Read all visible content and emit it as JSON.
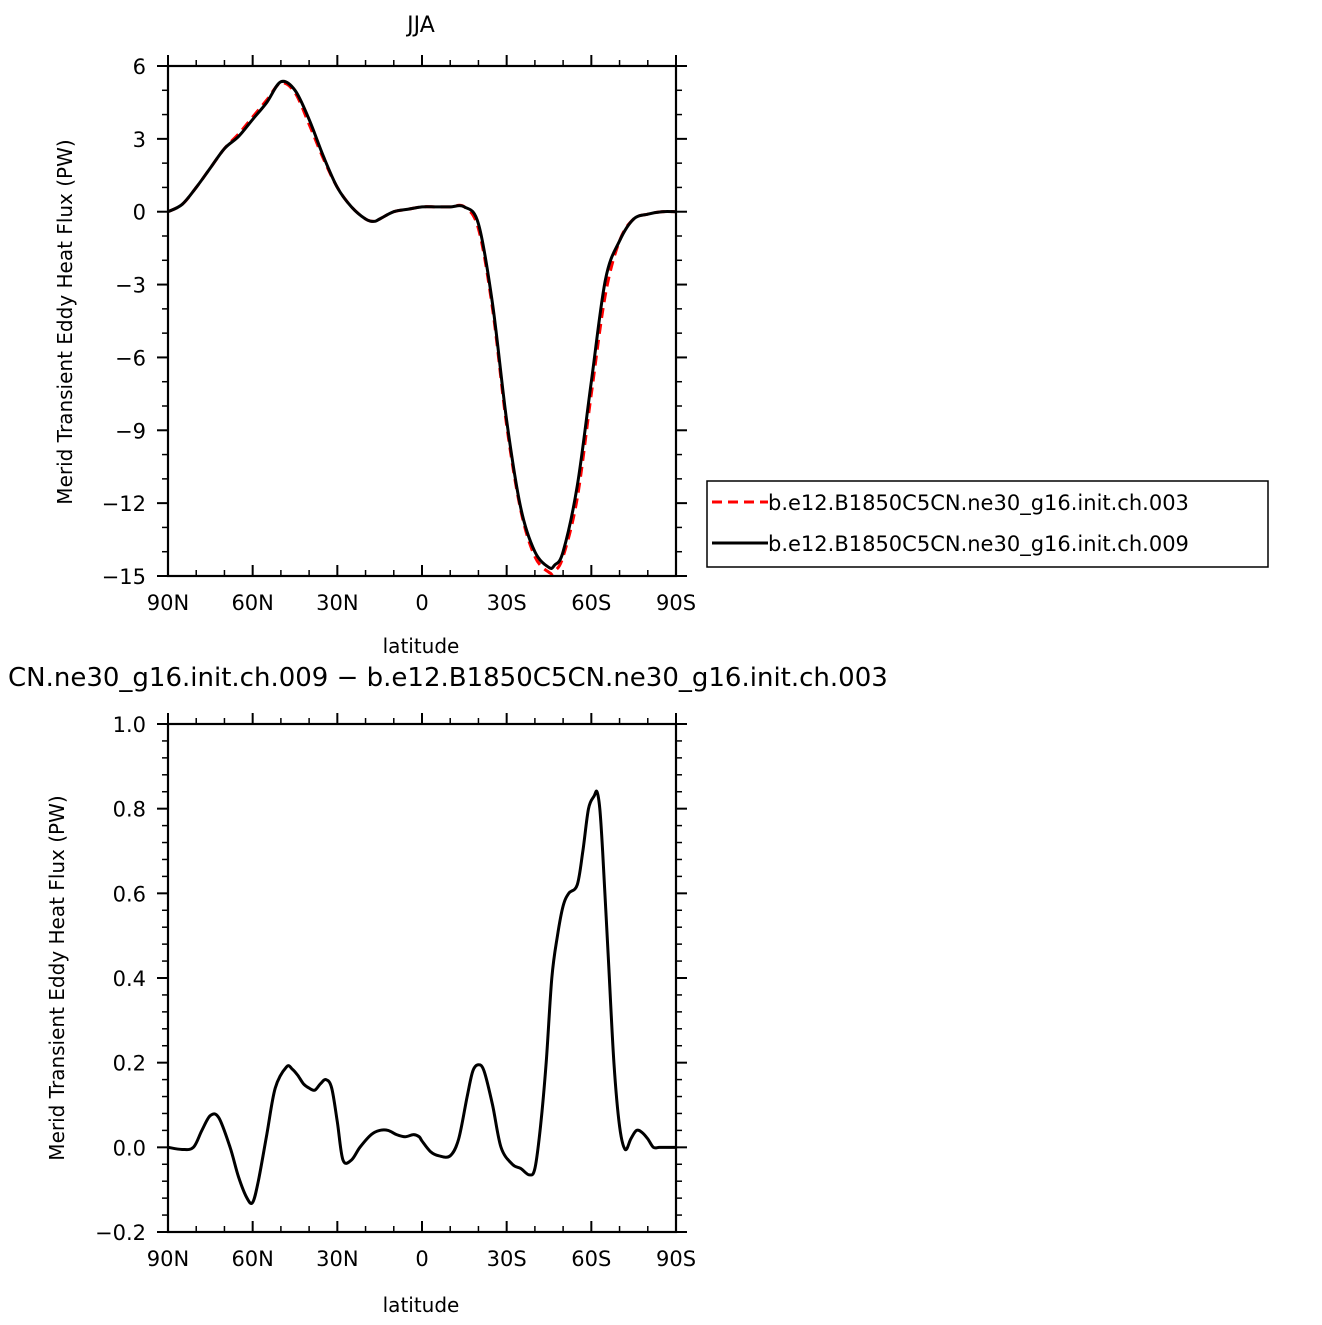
{
  "chart_data": [
    {
      "type": "line",
      "title": "JJA",
      "xlabel": "latitude",
      "ylabel": "Merid Transient Eddy Heat Flux (PW)",
      "xlim": [
        90,
        -90
      ],
      "ylim": [
        -15,
        6
      ],
      "x_tick_values": [
        90,
        60,
        30,
        0,
        -30,
        -60,
        -90
      ],
      "x_tick_labels": [
        "90N",
        "60N",
        "30N",
        "0",
        "30S",
        "60S",
        "90S"
      ],
      "y_tick_values": [
        6,
        3,
        0,
        -3,
        -6,
        -9,
        -12,
        -15
      ],
      "y_tick_labels": [
        "6",
        "3",
        "0",
        "−3",
        "−6",
        "−9",
        "−12",
        "−15"
      ],
      "legend_placement": "right",
      "series": [
        {
          "name": "b.e12.B1850C5CN.ne30_g16.init.ch.003",
          "color": "#ff0000",
          "dash": "dashed",
          "x": [
            90,
            85,
            80,
            75,
            70,
            65,
            60,
            55,
            50,
            45,
            40,
            35,
            30,
            25,
            20,
            17,
            15,
            10,
            5,
            0,
            -5,
            -10,
            -15,
            -20,
            -25,
            -30,
            -35,
            -40,
            -45,
            -47,
            -50,
            -55,
            -60,
            -65,
            -70,
            -75,
            -80,
            -85,
            -90
          ],
          "y": [
            0,
            0.3,
            1.0,
            1.8,
            2.6,
            3.2,
            3.9,
            4.6,
            5.3,
            4.9,
            3.6,
            2.2,
            1.0,
            0.2,
            -0.3,
            -0.4,
            -0.3,
            0,
            0.1,
            0.2,
            0.2,
            0.2,
            0.2,
            -0.7,
            -4.0,
            -8.8,
            -12.3,
            -14.2,
            -14.85,
            -14.8,
            -14.2,
            -11.8,
            -7.5,
            -3.4,
            -1.2,
            -0.3,
            -0.1,
            0,
            0
          ]
        },
        {
          "name": "b.e12.B1850C5CN.ne30_g16.init.ch.009",
          "color": "#000000",
          "dash": "solid",
          "x": [
            90,
            85,
            80,
            75,
            70,
            65,
            60,
            55,
            50,
            45,
            40,
            35,
            30,
            25,
            20,
            17,
            15,
            10,
            5,
            0,
            -5,
            -10,
            -15,
            -20,
            -25,
            -30,
            -35,
            -40,
            -45,
            -47,
            -50,
            -55,
            -60,
            -65,
            -70,
            -75,
            -80,
            -85,
            -90
          ],
          "y": [
            0,
            0.3,
            1.0,
            1.8,
            2.6,
            3.1,
            3.8,
            4.5,
            5.35,
            5.0,
            3.8,
            2.3,
            1.0,
            0.2,
            -0.3,
            -0.4,
            -0.3,
            0,
            0.1,
            0.2,
            0.2,
            0.2,
            0.2,
            -0.5,
            -3.8,
            -8.6,
            -12.2,
            -14.0,
            -14.65,
            -14.55,
            -14.0,
            -11.3,
            -7.0,
            -2.8,
            -1.2,
            -0.3,
            -0.1,
            0,
            0
          ]
        }
      ]
    },
    {
      "type": "line",
      "title": "CN.ne30_g16.init.ch.009 − b.e12.B1850C5CN.ne30_g16.init.ch.003",
      "xlabel": "latitude",
      "ylabel": "Merid Transient Eddy Heat Flux (PW)",
      "xlim": [
        90,
        -90
      ],
      "ylim": [
        -0.2,
        1.0
      ],
      "x_tick_values": [
        90,
        60,
        30,
        0,
        -30,
        -60,
        -90
      ],
      "x_tick_labels": [
        "90N",
        "60N",
        "30N",
        "0",
        "30S",
        "60S",
        "90S"
      ],
      "y_tick_values": [
        1.0,
        0.8,
        0.6,
        0.4,
        0.2,
        0.0,
        -0.2
      ],
      "y_tick_labels": [
        "1.0",
        "0.8",
        "0.6",
        "0.4",
        "0.2",
        "0.0",
        "−0.2"
      ],
      "series": [
        {
          "color": "#000000",
          "dash": "solid",
          "x": [
            90,
            85,
            81,
            78,
            75,
            72,
            68,
            65,
            62,
            60,
            58,
            55,
            52,
            48,
            46,
            44,
            42,
            40,
            38,
            36,
            34,
            32,
            30,
            28,
            25,
            22,
            18,
            15,
            12,
            9,
            6,
            3,
            1,
            0,
            -3,
            -6,
            -10,
            -13,
            -16,
            -18,
            -20,
            -22,
            -25,
            -28,
            -32,
            -35,
            -38,
            -40,
            -42,
            -44,
            -46,
            -48,
            -50,
            -52,
            -55,
            -57,
            -59,
            -61,
            -62,
            -63,
            -64,
            -66,
            -68,
            -70,
            -72,
            -74,
            -76,
            -78,
            -80,
            -82,
            -84,
            -86,
            -88,
            -90
          ],
          "y": [
            0.0,
            -0.005,
            0.0,
            0.04,
            0.075,
            0.07,
            0.0,
            -0.07,
            -0.12,
            -0.13,
            -0.08,
            0.03,
            0.14,
            0.19,
            0.185,
            0.17,
            0.15,
            0.14,
            0.135,
            0.15,
            0.16,
            0.14,
            0.06,
            -0.03,
            -0.03,
            0.0,
            0.03,
            0.04,
            0.04,
            0.03,
            0.025,
            0.03,
            0.025,
            0.015,
            -0.01,
            -0.02,
            -0.02,
            0.02,
            0.12,
            0.18,
            0.195,
            0.18,
            0.1,
            0.0,
            -0.04,
            -0.05,
            -0.065,
            -0.05,
            0.05,
            0.2,
            0.4,
            0.5,
            0.57,
            0.6,
            0.62,
            0.7,
            0.8,
            0.83,
            0.84,
            0.8,
            0.7,
            0.45,
            0.2,
            0.05,
            -0.005,
            0.02,
            0.04,
            0.035,
            0.02,
            0.0,
            0.0,
            0.0,
            0.0,
            0.0
          ]
        }
      ]
    }
  ]
}
